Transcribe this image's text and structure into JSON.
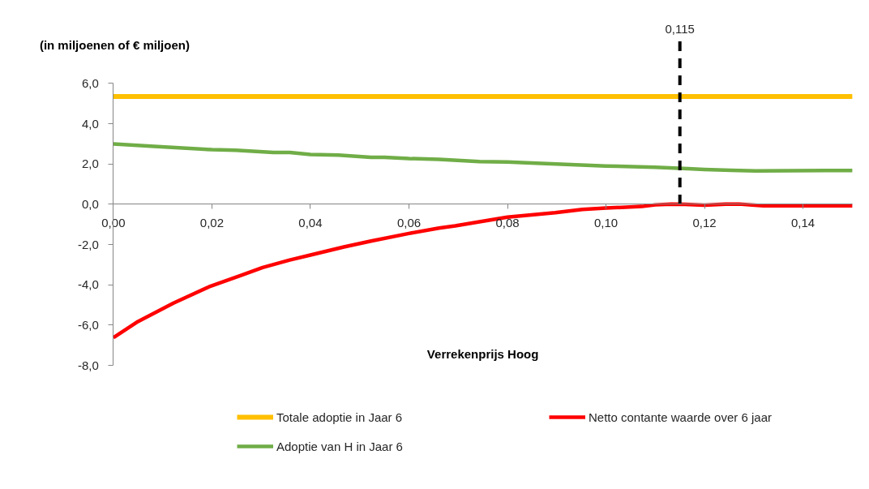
{
  "chart_data": {
    "type": "line",
    "xlabel": "Verrekenprijs Hoog",
    "ylabel": "(in miljoenen of € miljoen)",
    "xlim": [
      0,
      0.15
    ],
    "xticks": [
      {
        "value": 0,
        "label": "0,00"
      },
      {
        "value": 0.02,
        "label": "0,02"
      },
      {
        "value": 0.04,
        "label": "0,04"
      },
      {
        "value": 0.06,
        "label": "0,06"
      },
      {
        "value": 0.08,
        "label": "0,08"
      },
      {
        "value": 0.1,
        "label": "0,10"
      },
      {
        "value": 0.12,
        "label": "0,12"
      },
      {
        "value": 0.14,
        "label": "0,14"
      }
    ],
    "ylim": [
      -8,
      6
    ],
    "yticks": [
      {
        "value": -8,
        "label": "-8,0"
      },
      {
        "value": -6,
        "label": "-6,0"
      },
      {
        "value": -4,
        "label": "-4,0"
      },
      {
        "value": -2,
        "label": "-2,0"
      },
      {
        "value": 0,
        "label": "0,0"
      },
      {
        "value": 2,
        "label": "2,0"
      },
      {
        "value": 4,
        "label": "4,0"
      },
      {
        "value": 6,
        "label": "6,0"
      }
    ],
    "grid": false,
    "legend": "bottom",
    "series": [
      {
        "name": "Totale adoptie in Jaar 6",
        "color": "#ffc000",
        "x": [
          0,
          0.15
        ],
        "values": [
          5.35,
          5.35
        ]
      },
      {
        "name": "Netto contante waarde over 6 jaar",
        "color": "#ff0000",
        "x": [
          0,
          0.005,
          0.0122,
          0.0194,
          0.026,
          0.0303,
          0.0358,
          0.04,
          0.0468,
          0.0523,
          0.06,
          0.0661,
          0.0694,
          0.0743,
          0.08,
          0.0897,
          0.0952,
          0.1,
          0.1073,
          0.11,
          0.1133,
          0.116,
          0.12,
          0.1243,
          0.127,
          0.132,
          0.15
        ],
        "values": [
          -6.62,
          -5.82,
          -4.91,
          -4.1,
          -3.52,
          -3.14,
          -2.77,
          -2.52,
          -2.12,
          -1.83,
          -1.45,
          -1.18,
          -1.07,
          -0.87,
          -0.64,
          -0.42,
          -0.26,
          -0.19,
          -0.11,
          -0.03,
          0.01,
          0.0,
          -0.05,
          0.01,
          0.01,
          -0.08,
          -0.08
        ]
      },
      {
        "name": "Adoptie van H in Jaar 6",
        "color": "#70ad47",
        "x": [
          0,
          0.0083,
          0.02,
          0.0248,
          0.0325,
          0.0358,
          0.04,
          0.0457,
          0.0523,
          0.055,
          0.06,
          0.0661,
          0.0743,
          0.08,
          0.0859,
          0.1,
          0.11,
          0.1167,
          0.12,
          0.1254,
          0.1304,
          0.15
        ],
        "values": [
          3.0,
          2.87,
          2.71,
          2.68,
          2.57,
          2.57,
          2.47,
          2.44,
          2.33,
          2.33,
          2.27,
          2.23,
          2.12,
          2.1,
          2.04,
          1.9,
          1.84,
          1.77,
          1.73,
          1.69,
          1.66,
          1.68
        ]
      }
    ],
    "ref_lines": [
      {
        "axis": "x",
        "value": 0.115,
        "label": "0,115",
        "color": "#000000",
        "line_style": "dashed"
      }
    ]
  }
}
